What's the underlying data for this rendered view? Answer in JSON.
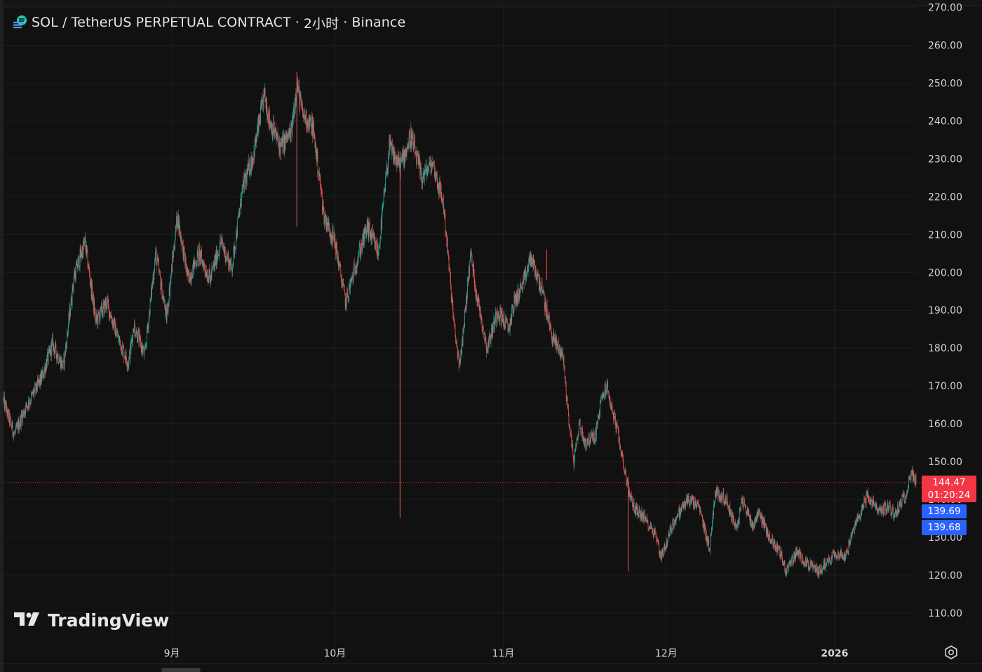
{
  "header": {
    "symbol": "SOL / TetherUS PERPETUAL CONTRACT",
    "sep1": "·",
    "interval": "2小时",
    "sep2": "·",
    "exchange": "Binance"
  },
  "watermark": {
    "text": "TradingView"
  },
  "price_scale": {
    "last_price": "144.47",
    "countdown": "01:20:24",
    "bid": "139.69",
    "ask": "139.68"
  },
  "colors": {
    "background": "#111111",
    "up": "#26a69a",
    "down": "#ef5350",
    "grid": "#1f1f1f",
    "last_price_line": "#f23645",
    "bid_ask": "#2962ff"
  },
  "icons": {
    "settings": "gear-icon",
    "logo": "tradingview-logo"
  },
  "chart_data": {
    "type": "candlestick",
    "title": "SOL / TetherUS PERPETUAL CONTRACT · 2小时 · Binance",
    "timeframe": "2小时",
    "y_axis": {
      "ticks": [
        110,
        120,
        130,
        140,
        150,
        160,
        170,
        180,
        190,
        200,
        210,
        220,
        230,
        240,
        250,
        260,
        270
      ],
      "tick_labels": [
        "110.00",
        "120.00",
        "130.00",
        "140.00",
        "150.00",
        "160.00",
        "170.00",
        "180.00",
        "190.00",
        "200.00",
        "210.00",
        "220.00",
        "230.00",
        "240.00",
        "250.00",
        "260.00",
        "270.00"
      ],
      "range": [
        104,
        272
      ]
    },
    "x_axis": {
      "ticks": [
        "9月",
        "10月",
        "11月",
        "12月",
        "2026"
      ],
      "tick_dates": [
        "2025-09-01",
        "2025-10-01",
        "2025-11-01",
        "2025-12-01",
        "2026-01-01"
      ],
      "range": [
        "2025-08-01",
        "2026-01-16"
      ]
    },
    "series": [
      {
        "path": [
          [
            "2025-08-01",
            166
          ],
          [
            "2025-08-03",
            157
          ],
          [
            "2025-08-05",
            164
          ],
          [
            "2025-08-08",
            172
          ],
          [
            "2025-08-10",
            181
          ],
          [
            "2025-08-12",
            175
          ],
          [
            "2025-08-14",
            199
          ],
          [
            "2025-08-16",
            208
          ],
          [
            "2025-08-18",
            187
          ],
          [
            "2025-08-20",
            192
          ],
          [
            "2025-08-22",
            183
          ],
          [
            "2025-08-24",
            176
          ],
          [
            "2025-08-25",
            186
          ],
          [
            "2025-08-27",
            178
          ],
          [
            "2025-08-29",
            205
          ],
          [
            "2025-08-31",
            188
          ],
          [
            "2025-09-02",
            215
          ],
          [
            "2025-09-04",
            198
          ],
          [
            "2025-09-06",
            205
          ],
          [
            "2025-09-08",
            198
          ],
          [
            "2025-09-10",
            208
          ],
          [
            "2025-09-12",
            201
          ],
          [
            "2025-09-14",
            222
          ],
          [
            "2025-09-16",
            231
          ],
          [
            "2025-09-18",
            247
          ],
          [
            "2025-09-19",
            240
          ],
          [
            "2025-09-21",
            233
          ],
          [
            "2025-09-23",
            237
          ],
          [
            "2025-09-24",
            250
          ],
          [
            "2025-09-25",
            242
          ],
          [
            "2025-09-27",
            238
          ],
          [
            "2025-09-29",
            215
          ],
          [
            "2025-10-01",
            208
          ],
          [
            "2025-10-03",
            192
          ],
          [
            "2025-10-05",
            203
          ],
          [
            "2025-10-07",
            212
          ],
          [
            "2025-10-09",
            205
          ],
          [
            "2025-10-11",
            233
          ],
          [
            "2025-10-13",
            228
          ],
          [
            "2025-10-15",
            236
          ],
          [
            "2025-10-17",
            225
          ],
          [
            "2025-10-19",
            229
          ],
          [
            "2025-10-21",
            218
          ],
          [
            "2025-10-23",
            185
          ],
          [
            "2025-10-24",
            175
          ],
          [
            "2025-10-26",
            205
          ],
          [
            "2025-10-27",
            195
          ],
          [
            "2025-10-29",
            180
          ],
          [
            "2025-10-31",
            190
          ],
          [
            "2025-11-02",
            185
          ],
          [
            "2025-11-03",
            192
          ],
          [
            "2025-11-05",
            198
          ],
          [
            "2025-11-06",
            204
          ],
          [
            "2025-11-08",
            196
          ],
          [
            "2025-11-10",
            183
          ],
          [
            "2025-11-12",
            178
          ],
          [
            "2025-11-13",
            162
          ],
          [
            "2025-11-14",
            150
          ],
          [
            "2025-11-15",
            160
          ],
          [
            "2025-11-16",
            155
          ],
          [
            "2025-11-18",
            157
          ],
          [
            "2025-11-19",
            166
          ],
          [
            "2025-11-20",
            170
          ],
          [
            "2025-11-22",
            158
          ],
          [
            "2025-11-24",
            143
          ],
          [
            "2025-11-25",
            138
          ],
          [
            "2025-11-27",
            135
          ],
          [
            "2025-11-29",
            131
          ],
          [
            "2025-11-30",
            125
          ],
          [
            "2025-12-01",
            128
          ],
          [
            "2025-12-02",
            133
          ],
          [
            "2025-12-04",
            138
          ],
          [
            "2025-12-05",
            140
          ],
          [
            "2025-12-07",
            138
          ],
          [
            "2025-12-09",
            127
          ],
          [
            "2025-12-10",
            142
          ],
          [
            "2025-12-12",
            140
          ],
          [
            "2025-12-14",
            132
          ],
          [
            "2025-12-15",
            140
          ],
          [
            "2025-12-17",
            133
          ],
          [
            "2025-12-18",
            137
          ],
          [
            "2025-12-20",
            130
          ],
          [
            "2025-12-22",
            126
          ],
          [
            "2025-12-23",
            121
          ],
          [
            "2025-12-25",
            126
          ],
          [
            "2025-12-27",
            123
          ],
          [
            "2025-12-29",
            121
          ],
          [
            "2025-12-31",
            124
          ],
          [
            "2026-01-01",
            126
          ],
          [
            "2026-01-03",
            125
          ],
          [
            "2026-01-05",
            134
          ],
          [
            "2026-01-07",
            141
          ],
          [
            "2026-01-09",
            137
          ],
          [
            "2026-01-11",
            138
          ],
          [
            "2026-01-12",
            136
          ],
          [
            "2026-01-14",
            141
          ],
          [
            "2026-01-15",
            147
          ],
          [
            "2026-01-16",
            144.47
          ]
        ],
        "spikes": [
          [
            "2025-10-13",
            135,
            232
          ],
          [
            "2025-11-09",
            198,
            206
          ],
          [
            "2025-09-24",
            212,
            253
          ],
          [
            "2025-11-24",
            121,
            146
          ]
        ]
      }
    ],
    "last_price": 144.47,
    "countdown": "01:20:24",
    "bid": 139.69,
    "ask": 139.68,
    "grid": true
  }
}
